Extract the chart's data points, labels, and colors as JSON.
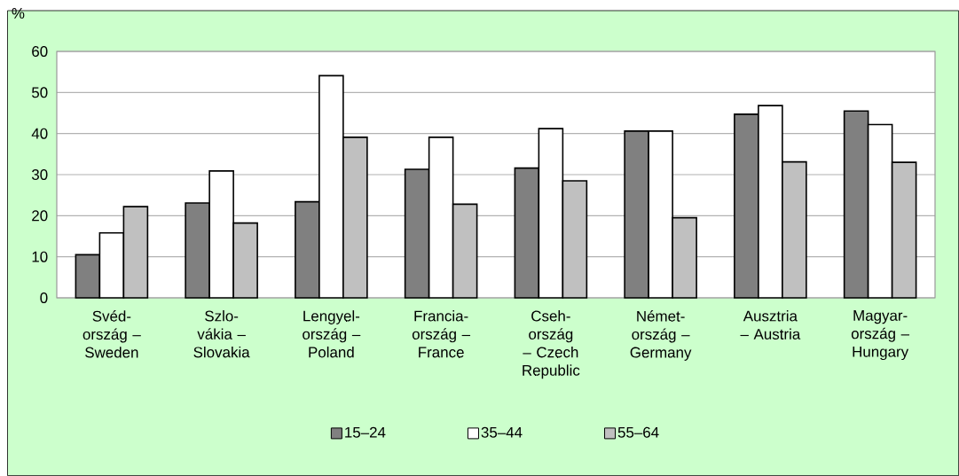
{
  "chart_data": {
    "type": "bar",
    "ylabel": "%",
    "categories": [
      "Svéd-ország – Sweden",
      "Szlo-vákia – Slovakia",
      "Lengyel-ország – Poland",
      "Francia-ország – France",
      "Cseh-ország – Czech Republic",
      "Német-ország – Germany",
      "Ausztria – Austria",
      "Magyar-ország – Hungary"
    ],
    "series": [
      {
        "name": "15–24",
        "color": "#808080",
        "values": [
          10.5,
          23.1,
          23.4,
          31.3,
          31.6,
          40.6,
          44.7,
          45.5
        ]
      },
      {
        "name": "35–44",
        "color": "#ffffff",
        "values": [
          15.8,
          30.9,
          54.1,
          39.1,
          41.2,
          40.6,
          46.8,
          42.2
        ]
      },
      {
        "name": "55–64",
        "color": "#c0c0c0",
        "values": [
          22.2,
          18.2,
          39.1,
          22.8,
          28.5,
          19.5,
          33.1,
          33.0
        ]
      }
    ],
    "ylim": [
      0,
      60
    ],
    "yticks": [
      0,
      10,
      20,
      30,
      40,
      50,
      60
    ],
    "grid": "y",
    "legend": "bottom"
  }
}
